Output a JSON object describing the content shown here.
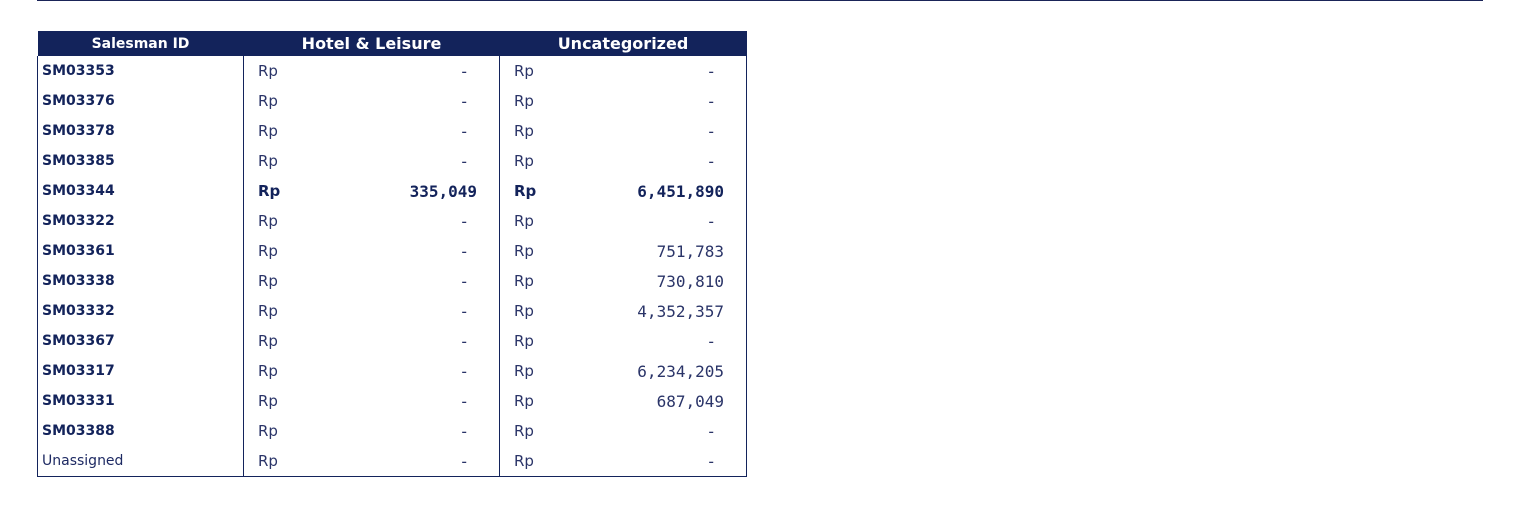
{
  "headers": {
    "salesman_id": "Salesman ID",
    "hotel_leisure": "Hotel & Leisure",
    "uncategorized": "Uncategorized"
  },
  "currency": "Rp",
  "rows": [
    {
      "id": "SM03353",
      "hotel": "-",
      "uncat": "-"
    },
    {
      "id": "SM03376",
      "hotel": "-",
      "uncat": "-"
    },
    {
      "id": "SM03378",
      "hotel": "-",
      "uncat": "-"
    },
    {
      "id": "SM03385",
      "hotel": "-",
      "uncat": "-"
    },
    {
      "id": "SM03344",
      "hotel": "335,049",
      "uncat": "6,451,890"
    },
    {
      "id": "SM03322",
      "hotel": "-",
      "uncat": "-"
    },
    {
      "id": "SM03361",
      "hotel": "-",
      "uncat": "751,783"
    },
    {
      "id": "SM03338",
      "hotel": "-",
      "uncat": "730,810"
    },
    {
      "id": "SM03332",
      "hotel": "-",
      "uncat": "4,352,357"
    },
    {
      "id": "SM03367",
      "hotel": "-",
      "uncat": "-"
    },
    {
      "id": "SM03317",
      "hotel": "-",
      "uncat": "6,234,205"
    },
    {
      "id": "SM03331",
      "hotel": "-",
      "uncat": "687,049"
    },
    {
      "id": "SM03388",
      "hotel": "-",
      "uncat": "-"
    },
    {
      "id": "Unassigned",
      "hotel": "-",
      "uncat": "-"
    }
  ]
}
